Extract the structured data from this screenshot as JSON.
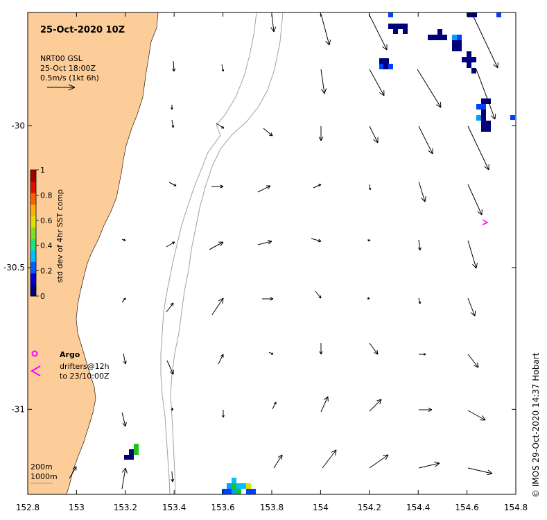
{
  "title": "25-Oct-2020 10Z",
  "source": {
    "line1": "NRT00 GSL",
    "line2": "25-Oct 18:00Z",
    "scale_text": "0.5m/s (1kt 6h)"
  },
  "colorbar": {
    "label": "std dev of 4hr SST comp",
    "ticks": [
      "1",
      "0.8",
      "0.6",
      "0.4",
      "0.2",
      "0"
    ],
    "colors": [
      "#00007a",
      "#0000d0",
      "#0060ff",
      "#00c0ff",
      "#20e080",
      "#80e020",
      "#e0e000",
      "#ffb000",
      "#ff6000",
      "#e01000",
      "#a00000"
    ]
  },
  "legend": {
    "argo_label": "Argo",
    "drifters_line1": "drifters@12h",
    "drifters_line2": "to 23/10:00Z",
    "argo_color": "#ff00ff"
  },
  "depth_labels": [
    "200m",
    "1000m"
  ],
  "credit": "© IMOS 29-Oct-2020 14:37 Hobart",
  "axes": {
    "x_ticks": [
      "152.8",
      "153",
      "153.2",
      "153.4",
      "153.6",
      "153.8",
      "154",
      "154.2",
      "154.4",
      "154.6",
      "154.8"
    ],
    "y_ticks": [
      "-30",
      "-30.5",
      "-31"
    ],
    "x_range": [
      152.8,
      154.8
    ],
    "y_range": [
      -29.6,
      -31.3
    ]
  },
  "colors": {
    "land": "#fccc99",
    "isobath": "#a0a0a0",
    "arrow": "#000000"
  }
}
